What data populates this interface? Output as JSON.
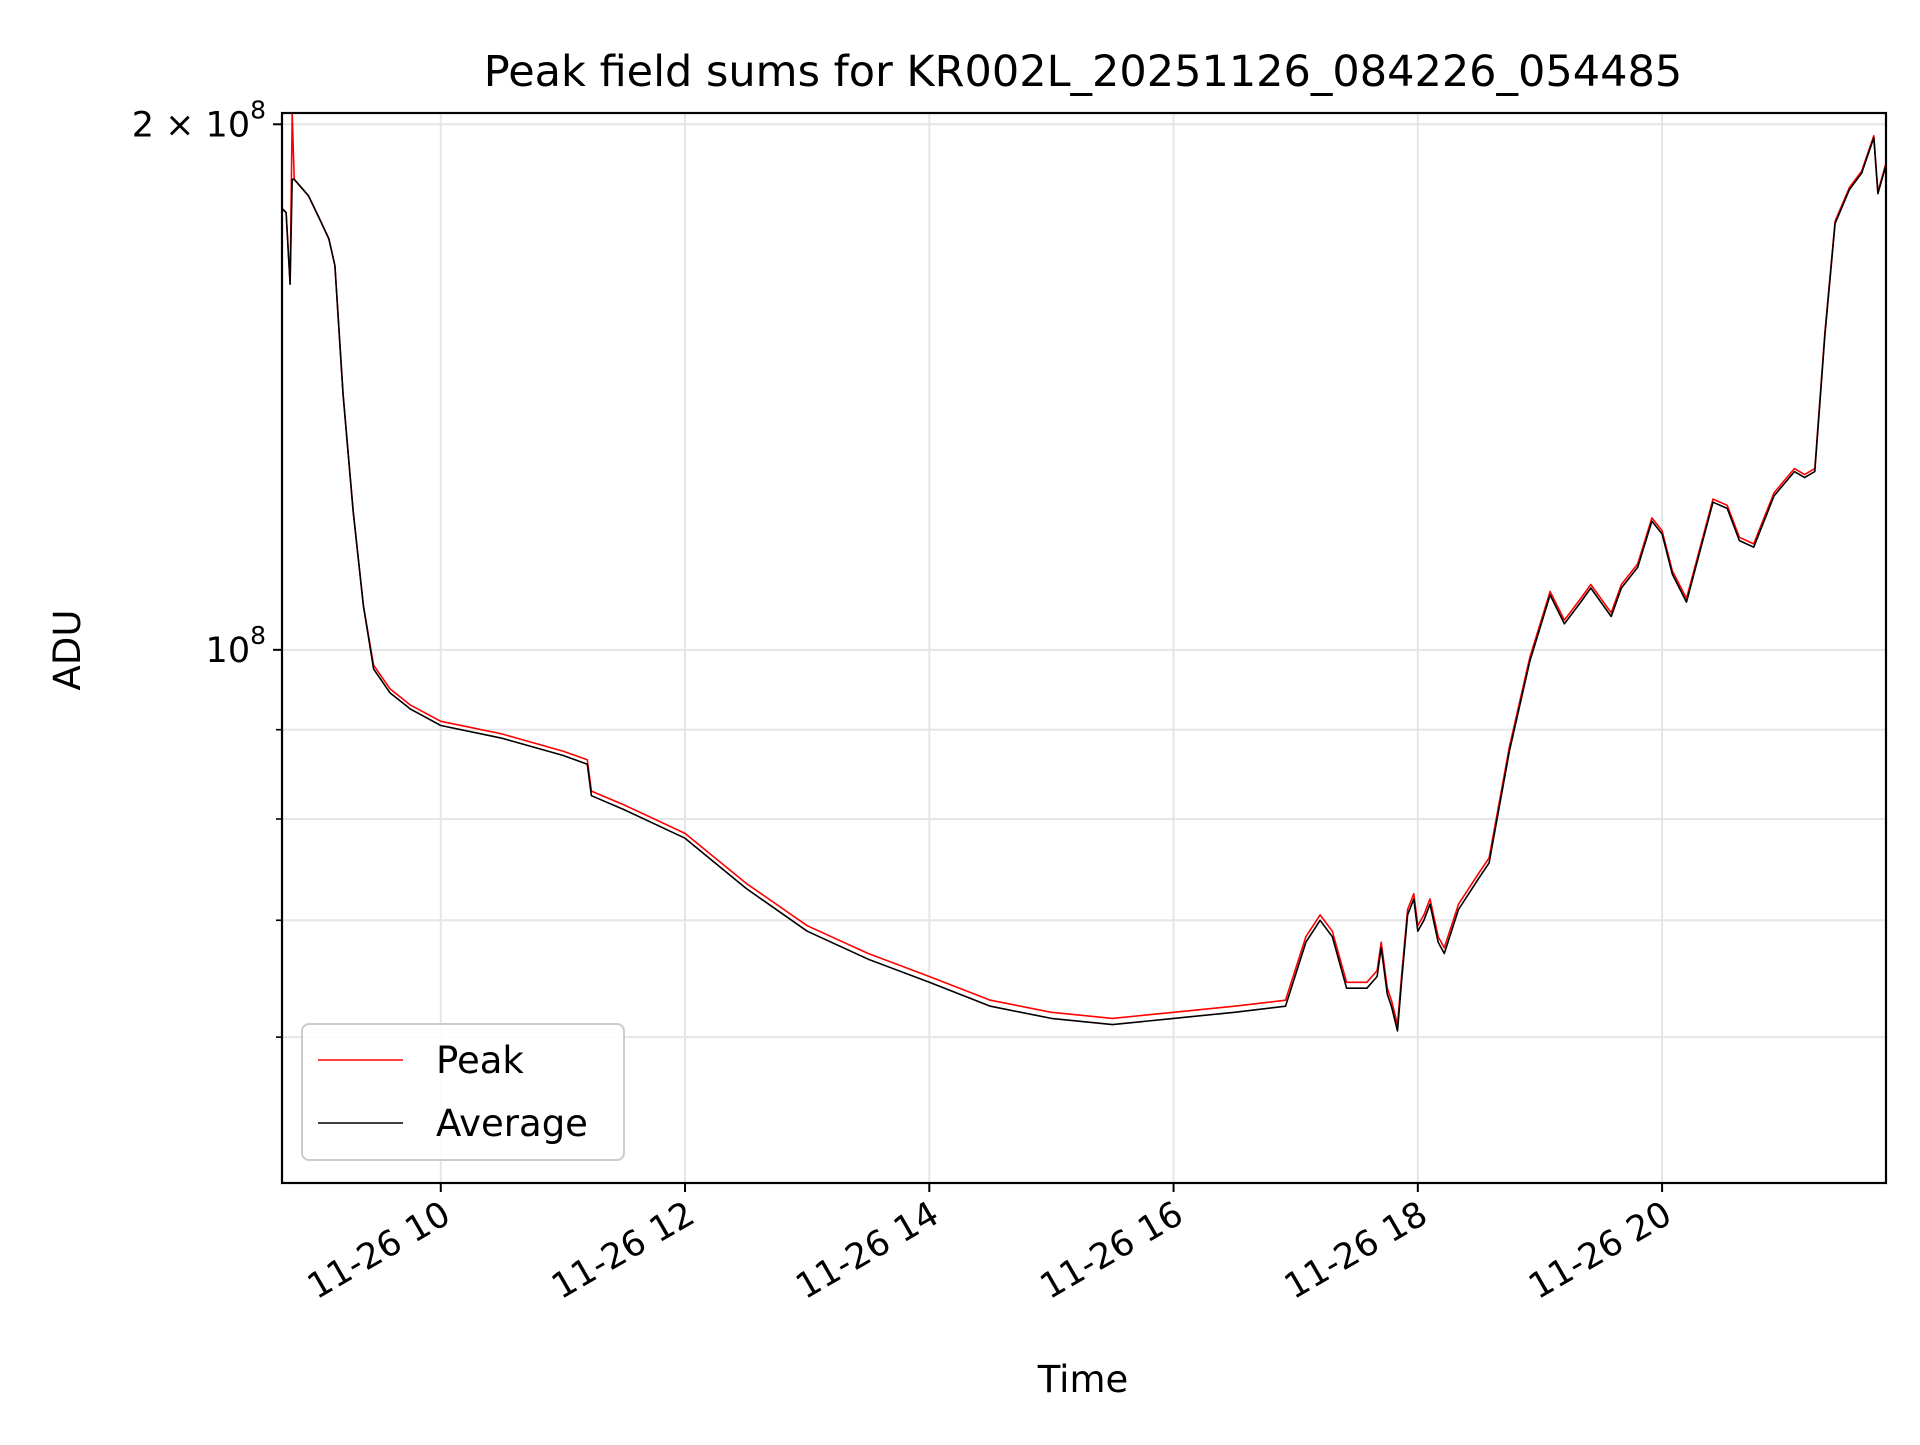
{
  "chart_data": {
    "type": "line",
    "title": "Peak field sums for KR002L_20251126_084226_054485",
    "xlabel": "Time",
    "ylabel": "ADU",
    "yscale": "log",
    "grid": true,
    "legend_placement": "lower-left",
    "xlim": [
      "2025-11-26T08:42",
      "2025-11-26T21:50"
    ],
    "ylim": [
      49500000,
      203000000
    ],
    "x_ticks": [
      {
        "value": "2025-11-26T10:00",
        "label": "11-26 10"
      },
      {
        "value": "2025-11-26T12:00",
        "label": "11-26 12"
      },
      {
        "value": "2025-11-26T14:00",
        "label": "11-26 14"
      },
      {
        "value": "2025-11-26T16:00",
        "label": "11-26 16"
      },
      {
        "value": "2025-11-26T18:00",
        "label": "11-26 18"
      },
      {
        "value": "2025-11-26T20:00",
        "label": "11-26 20"
      }
    ],
    "y_major_ticks": [
      {
        "value": 100000000,
        "label_base": "10",
        "label_exp": "8"
      },
      {
        "value": 200000000,
        "label_base": "2 × 10",
        "label_exp": "8"
      }
    ],
    "y_minor_ticks": [
      60000000,
      70000000,
      80000000,
      90000000
    ],
    "series": [
      {
        "name": "Peak",
        "color": "#ff0000",
        "points": [
          [
            "2025-11-26T08:42",
            179000000.0
          ],
          [
            "2025-11-26T08:44",
            178000000.0
          ],
          [
            "2025-11-26T08:46",
            162000000.0
          ],
          [
            "2025-11-26T08:47",
            203000000.0
          ],
          [
            "2025-11-26T08:48",
            186000000.0
          ],
          [
            "2025-11-26T08:55",
            182000000.0
          ],
          [
            "2025-11-26T09:00",
            177000000.0
          ],
          [
            "2025-11-26T09:05",
            172000000.0
          ],
          [
            "2025-11-26T09:08",
            166000000.0
          ],
          [
            "2025-11-26T09:12",
            140000000.0
          ],
          [
            "2025-11-26T09:17",
            120000000.0
          ],
          [
            "2025-11-26T09:22",
            106000000.0
          ],
          [
            "2025-11-26T09:27",
            98000000.0
          ],
          [
            "2025-11-26T09:35",
            95000000.0
          ],
          [
            "2025-11-26T09:45",
            93000000.0
          ],
          [
            "2025-11-26T10:00",
            91000000.0
          ],
          [
            "2025-11-26T10:30",
            89500000.0
          ],
          [
            "2025-11-26T11:00",
            87500000.0
          ],
          [
            "2025-11-26T11:12",
            86500000.0
          ],
          [
            "2025-11-26T11:14",
            83000000.0
          ],
          [
            "2025-11-26T11:30",
            81500000.0
          ],
          [
            "2025-11-26T12:00",
            78500000.0
          ],
          [
            "2025-11-26T12:30",
            73500000.0
          ],
          [
            "2025-11-26T13:00",
            69500000.0
          ],
          [
            "2025-11-26T13:30",
            67000000.0
          ],
          [
            "2025-11-26T14:00",
            65000000.0
          ],
          [
            "2025-11-26T14:30",
            63000000.0
          ],
          [
            "2025-11-26T15:00",
            62000000.0
          ],
          [
            "2025-11-26T15:30",
            61500000.0
          ],
          [
            "2025-11-26T16:00",
            62000000.0
          ],
          [
            "2025-11-26T16:30",
            62500000.0
          ],
          [
            "2025-11-26T16:55",
            63000000.0
          ],
          [
            "2025-11-26T17:05",
            68500000.0
          ],
          [
            "2025-11-26T17:12",
            70500000.0
          ],
          [
            "2025-11-26T17:18",
            69000000.0
          ],
          [
            "2025-11-26T17:25",
            64500000.0
          ],
          [
            "2025-11-26T17:35",
            64500000.0
          ],
          [
            "2025-11-26T17:40",
            65500000.0
          ],
          [
            "2025-11-26T17:42",
            68000000.0
          ],
          [
            "2025-11-26T17:45",
            64000000.0
          ],
          [
            "2025-11-26T17:47",
            63000000.0
          ],
          [
            "2025-11-26T17:50",
            61000000.0
          ],
          [
            "2025-11-26T17:52",
            65000000.0
          ],
          [
            "2025-11-26T17:55",
            71000000.0
          ],
          [
            "2025-11-26T17:58",
            72500000.0
          ],
          [
            "2025-11-26T18:00",
            69500000.0
          ],
          [
            "2025-11-26T18:03",
            70500000.0
          ],
          [
            "2025-11-26T18:06",
            72000000.0
          ],
          [
            "2025-11-26T18:10",
            68500000.0
          ],
          [
            "2025-11-26T18:13",
            67500000.0
          ],
          [
            "2025-11-26T18:20",
            71500000.0
          ],
          [
            "2025-11-26T18:30",
            74500000.0
          ],
          [
            "2025-11-26T18:35",
            76000000.0
          ],
          [
            "2025-11-26T18:45",
            88000000.0
          ],
          [
            "2025-11-26T18:55",
            99000000.0
          ],
          [
            "2025-11-26T19:05",
            108000000.0
          ],
          [
            "2025-11-26T19:12",
            104000000.0
          ],
          [
            "2025-11-26T19:20",
            107000000.0
          ],
          [
            "2025-11-26T19:25",
            109000000.0
          ],
          [
            "2025-11-26T19:35",
            105000000.0
          ],
          [
            "2025-11-26T19:40",
            109000000.0
          ],
          [
            "2025-11-26T19:48",
            112000000.0
          ],
          [
            "2025-11-26T19:55",
            119000000.0
          ],
          [
            "2025-11-26T20:00",
            117000000.0
          ],
          [
            "2025-11-26T20:05",
            111000000.0
          ],
          [
            "2025-11-26T20:12",
            107000000.0
          ],
          [
            "2025-11-26T20:20",
            116000000.0
          ],
          [
            "2025-11-26T20:25",
            122000000.0
          ],
          [
            "2025-11-26T20:32",
            121000000.0
          ],
          [
            "2025-11-26T20:38",
            116000000.0
          ],
          [
            "2025-11-26T20:45",
            115000000.0
          ],
          [
            "2025-11-26T20:55",
            123000000.0
          ],
          [
            "2025-11-26T21:00",
            125000000.0
          ],
          [
            "2025-11-26T21:05",
            127000000.0
          ],
          [
            "2025-11-26T21:10",
            126000000.0
          ],
          [
            "2025-11-26T21:15",
            127000000.0
          ],
          [
            "2025-11-26T21:20",
            152000000.0
          ],
          [
            "2025-11-26T21:25",
            176000000.0
          ],
          [
            "2025-11-26T21:32",
            184000000.0
          ],
          [
            "2025-11-26T21:38",
            188000000.0
          ],
          [
            "2025-11-26T21:44",
            197000000.0
          ],
          [
            "2025-11-26T21:46",
            183000000.0
          ],
          [
            "2025-11-26T21:50",
            190000000.0
          ]
        ]
      },
      {
        "name": "Average",
        "color": "#000000",
        "points": [
          [
            "2025-11-26T08:42",
            179000000.0
          ],
          [
            "2025-11-26T08:44",
            178000000.0
          ],
          [
            "2025-11-26T08:46",
            162000000.0
          ],
          [
            "2025-11-26T08:47",
            186000000.0
          ],
          [
            "2025-11-26T08:48",
            186000000.0
          ],
          [
            "2025-11-26T08:55",
            182000000.0
          ],
          [
            "2025-11-26T09:00",
            177000000.0
          ],
          [
            "2025-11-26T09:05",
            172000000.0
          ],
          [
            "2025-11-26T09:08",
            166000000.0
          ],
          [
            "2025-11-26T09:12",
            140000000.0
          ],
          [
            "2025-11-26T09:17",
            120000000.0
          ],
          [
            "2025-11-26T09:22",
            106000000.0
          ],
          [
            "2025-11-26T09:27",
            97500000.0
          ],
          [
            "2025-11-26T09:35",
            94500000.0
          ],
          [
            "2025-11-26T09:45",
            92500000.0
          ],
          [
            "2025-11-26T10:00",
            90500000.0
          ],
          [
            "2025-11-26T10:30",
            89000000.0
          ],
          [
            "2025-11-26T11:00",
            87000000.0
          ],
          [
            "2025-11-26T11:12",
            86000000.0
          ],
          [
            "2025-11-26T11:14",
            82500000.0
          ],
          [
            "2025-11-26T11:30",
            81000000.0
          ],
          [
            "2025-11-26T12:00",
            78000000.0
          ],
          [
            "2025-11-26T12:30",
            73000000.0
          ],
          [
            "2025-11-26T13:00",
            69000000.0
          ],
          [
            "2025-11-26T13:30",
            66500000.0
          ],
          [
            "2025-11-26T14:00",
            64500000.0
          ],
          [
            "2025-11-26T14:30",
            62500000.0
          ],
          [
            "2025-11-26T15:00",
            61500000.0
          ],
          [
            "2025-11-26T15:30",
            61000000.0
          ],
          [
            "2025-11-26T16:00",
            61500000.0
          ],
          [
            "2025-11-26T16:30",
            62000000.0
          ],
          [
            "2025-11-26T16:55",
            62500000.0
          ],
          [
            "2025-11-26T17:05",
            68000000.0
          ],
          [
            "2025-11-26T17:12",
            70000000.0
          ],
          [
            "2025-11-26T17:18",
            68500000.0
          ],
          [
            "2025-11-26T17:25",
            64000000.0
          ],
          [
            "2025-11-26T17:35",
            64000000.0
          ],
          [
            "2025-11-26T17:40",
            65000000.0
          ],
          [
            "2025-11-26T17:42",
            67500000.0
          ],
          [
            "2025-11-26T17:45",
            63500000.0
          ],
          [
            "2025-11-26T17:47",
            62500000.0
          ],
          [
            "2025-11-26T17:50",
            60500000.0
          ],
          [
            "2025-11-26T17:52",
            64500000.0
          ],
          [
            "2025-11-26T17:55",
            70500000.0
          ],
          [
            "2025-11-26T17:58",
            72000000.0
          ],
          [
            "2025-11-26T18:00",
            69000000.0
          ],
          [
            "2025-11-26T18:03",
            70000000.0
          ],
          [
            "2025-11-26T18:06",
            71500000.0
          ],
          [
            "2025-11-26T18:10",
            68000000.0
          ],
          [
            "2025-11-26T18:13",
            67000000.0
          ],
          [
            "2025-11-26T18:20",
            71000000.0
          ],
          [
            "2025-11-26T18:30",
            74000000.0
          ],
          [
            "2025-11-26T18:35",
            75500000.0
          ],
          [
            "2025-11-26T18:45",
            87500000.0
          ],
          [
            "2025-11-26T18:55",
            98500000.0
          ],
          [
            "2025-11-26T19:05",
            107500000.0
          ],
          [
            "2025-11-26T19:12",
            103500000.0
          ],
          [
            "2025-11-26T19:20",
            106500000.0
          ],
          [
            "2025-11-26T19:25",
            108500000.0
          ],
          [
            "2025-11-26T19:35",
            104500000.0
          ],
          [
            "2025-11-26T19:40",
            108500000.0
          ],
          [
            "2025-11-26T19:48",
            111500000.0
          ],
          [
            "2025-11-26T19:55",
            118500000.0
          ],
          [
            "2025-11-26T20:00",
            116500000.0
          ],
          [
            "2025-11-26T20:05",
            110500000.0
          ],
          [
            "2025-11-26T20:12",
            106500000.0
          ],
          [
            "2025-11-26T20:20",
            115500000.0
          ],
          [
            "2025-11-26T20:25",
            121500000.0
          ],
          [
            "2025-11-26T20:32",
            120500000.0
          ],
          [
            "2025-11-26T20:38",
            115500000.0
          ],
          [
            "2025-11-26T20:45",
            114500000.0
          ],
          [
            "2025-11-26T20:55",
            122500000.0
          ],
          [
            "2025-11-26T21:00",
            124500000.0
          ],
          [
            "2025-11-26T21:05",
            126500000.0
          ],
          [
            "2025-11-26T21:10",
            125500000.0
          ],
          [
            "2025-11-26T21:15",
            126500000.0
          ],
          [
            "2025-11-26T21:20",
            151500000.0
          ],
          [
            "2025-11-26T21:25",
            175500000.0
          ],
          [
            "2025-11-26T21:32",
            183500000.0
          ],
          [
            "2025-11-26T21:38",
            187500000.0
          ],
          [
            "2025-11-26T21:44",
            196500000.0
          ],
          [
            "2025-11-26T21:46",
            182500000.0
          ],
          [
            "2025-11-26T21:50",
            189500000.0
          ]
        ]
      }
    ]
  }
}
